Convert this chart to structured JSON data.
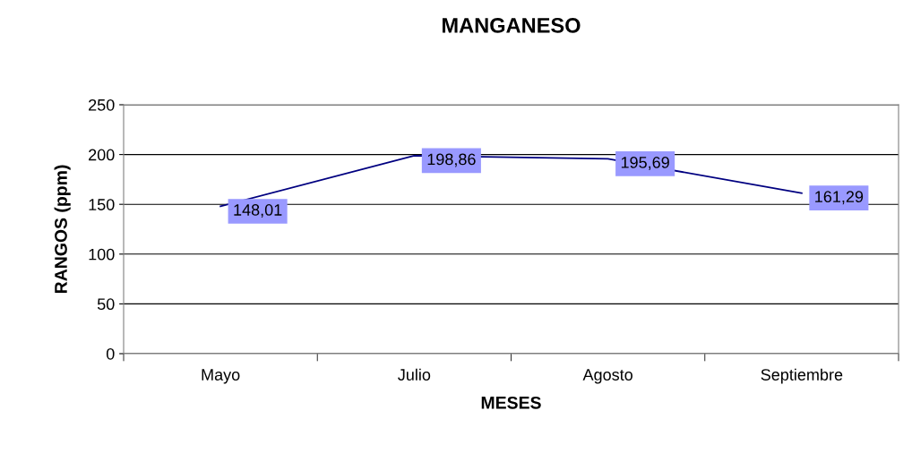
{
  "chart_data": {
    "type": "line",
    "title": "MANGANESO",
    "xlabel": "MESES",
    "ylabel": "RANGOS (ppm)",
    "categories": [
      "Mayo",
      "Julio",
      "Agosto",
      "Septiembre"
    ],
    "series": [
      {
        "color": "#000080",
        "values": [
          148.01,
          198.86,
          195.69,
          161.29
        ],
        "value_labels": [
          "148,01",
          "198,86",
          "195,69",
          "161,29"
        ]
      }
    ],
    "ylim": [
      0,
      250
    ],
    "yticks": [
      0,
      50,
      100,
      150,
      200,
      250
    ],
    "grid": "y",
    "marker": "none",
    "line_style": "solid"
  }
}
